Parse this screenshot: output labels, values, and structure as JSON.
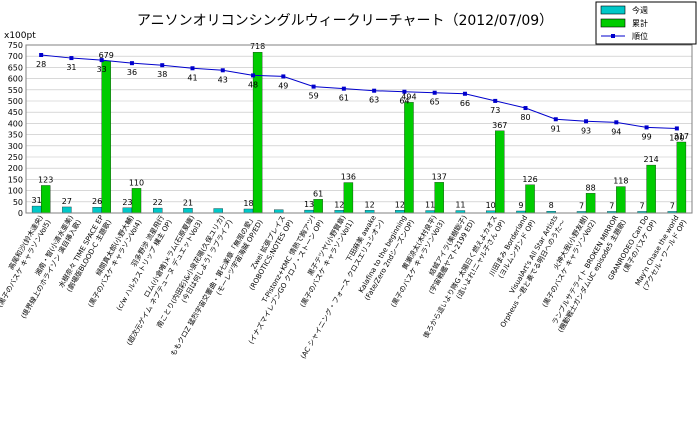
{
  "chart_data": {
    "type": "bar",
    "title": "アニソンオリコンシングルウィークリーチャート（2012/07/09）",
    "ylabel": "x100pt",
    "ylim": [
      0,
      750
    ],
    "yticks": [
      0,
      50,
      100,
      150,
      200,
      250,
      300,
      350,
      400,
      450,
      500,
      550,
      600,
      650,
      700,
      750
    ],
    "grid": true,
    "legend_position": "top-right",
    "categories": [
      [
        "高尾和沙(鈴木達央)",
        "(黒子のバスケ キャラソンVol5)"
      ],
      [
        "湘南・智(小清水亜美)",
        "(境界線上のホライゾン 演目挿入歌)"
      ],
      [
        "水樹奈々 TIME SPACE EP",
        "(劇場版BLOOD-C 主題歌)"
      ],
      [
        "緑間真太郎(小野大輔)",
        "(黒子のバスケ キャラソンVol4)"
      ],
      [
        "羽多野渉 流星飛行",
        "(c/w ハルカストリップ 構主 OP)"
      ],
      [
        "ロム(小倉唯)×ラム(石原夏織)",
        "(超次元ゲイム ネプテューヌ デュエットVol3)"
      ],
      [
        "南ことり(内田彩)&小泉花陽(久保ユリカ)",
        "(今日は何しよう! ラブライブ)"
      ],
      [
        "ももクロZ 猛烈宇宙交響曲・第七楽章「無限の愛」",
        "(モーレツ宇宙海賊 OP/ED)"
      ],
      [
        "Zwei 拡張プレイス",
        "(ROBOTICS;NOTES OP)"
      ],
      [
        "T-Pistonz+KMC 情熱で胸アツ!",
        "(イナズマイレブンGO クロノ・ストーン OP)"
      ],
      [
        "黒子テツヤ(小野賢章)",
        "(黒子のバスケ キャラソンVol1)"
      ],
      [
        "下田麻美 awake",
        "(AC シャイニング・フォース クロスエリュシオン)"
      ],
      [
        "Kalafina to the beginning",
        "(Fate/Zero 2ndシーズンOP)"
      ],
      [
        "黄瀬涼太(木村良平)",
        "(黒子のバスケ キャラソンVol3)"
      ],
      [
        "結城アイラ(美樹聡子)",
        "(宇宙戦艦ヤマト2199 ED)"
      ],
      [
        "後ろから這いより隊G 太陽曰く燃えよカオス",
        "(這いよれ!ニャル子さん OP)"
      ],
      [
        "川田まみ Borderland",
        "(ヨルムンガンド OP)"
      ],
      [
        "VisualArt's All Star Artists",
        "Orpheus ～君と奏でる明日へのうた～"
      ],
      [
        "火神大我(小野友樹)",
        "(黒子のバスケ キャラソンVol2)"
      ],
      [
        "ランブルサテライト BROKEN MIRROR",
        "(機動戦士ガンダムUC episode5 主題歌)"
      ],
      [
        "GRANRODEO Can Do",
        "(黒子のバスケ OP)"
      ],
      [
        "May'n Chase the world",
        "(アクセル・ワールド OP)"
      ]
    ],
    "series": [
      {
        "name": "今週",
        "type": "bar",
        "color": "#00c8c8",
        "values": [
          31,
          27,
          26,
          23,
          22,
          21,
          20,
          18,
          15,
          13,
          12,
          12,
          12,
          11,
          11,
          10,
          9,
          8,
          7,
          7,
          7,
          7
        ]
      },
      {
        "name": "累計",
        "type": "bar",
        "color": "#00cc00",
        "values": [
          123,
          0,
          679,
          110,
          0,
          0,
          0,
          718,
          0,
          61,
          136,
          0,
          494,
          137,
          0,
          367,
          126,
          0,
          88,
          118,
          214,
          317
        ]
      },
      {
        "name": "順位",
        "type": "line",
        "color": "#0000cc",
        "values": [
          28,
          31,
          33,
          36,
          38,
          41,
          43,
          48,
          49,
          59,
          61,
          63,
          64,
          65,
          66,
          73,
          80,
          91,
          93,
          94,
          99,
          100
        ]
      }
    ],
    "weekly_labels": [
      "31",
      "27",
      "26",
      "23",
      "22",
      "21",
      "",
      "18",
      "",
      "13",
      "12",
      "12",
      "12",
      "11",
      "11",
      "10",
      "9",
      "8",
      "7",
      "7",
      "7",
      "7"
    ],
    "cumulative_labels": [
      "123",
      "",
      "679",
      "110",
      "",
      "",
      "",
      "718",
      "",
      "61",
      "136",
      "",
      "494",
      "137",
      "",
      "367",
      "126",
      "",
      "88",
      "118",
      "214",
      "317"
    ],
    "rank_labels": [
      "28",
      "31",
      "33",
      "36",
      "38",
      "41",
      "43",
      "48",
      "49",
      "59",
      "61",
      "63",
      "64",
      "65",
      "66",
      "73",
      "80",
      "91",
      "93",
      "94",
      "99",
      "100"
    ]
  }
}
